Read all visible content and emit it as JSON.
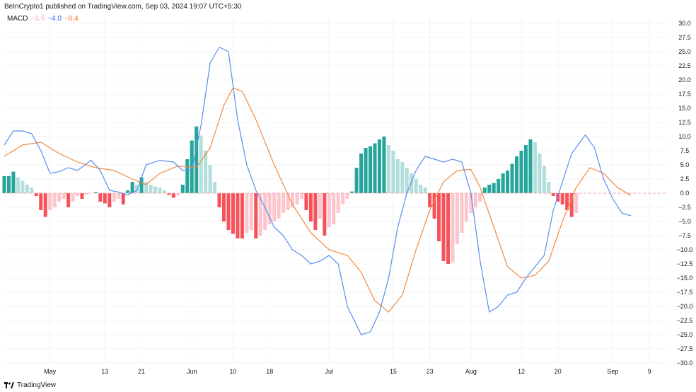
{
  "header": {
    "published": "BeInCrypto1 published on TradingView.com, Sep 03, 2024 19:07 UTC+5:30"
  },
  "legend": {
    "name": "MACD",
    "histogram_value": "−3.5",
    "macd_value": "−4.0",
    "signal_value": "−0.4"
  },
  "footer": {
    "brand": "TradingView"
  },
  "colors": {
    "macd": "#5b8def",
    "signal": "#f5893a",
    "hist_pos_strong": "#26a69a",
    "hist_pos_weak": "#b2dfdb",
    "hist_neg_strong": "#f5525a",
    "hist_neg_weak": "#fcc6cc",
    "zero_line": "#f7a9b1"
  },
  "chart_data": {
    "type": "line",
    "title": "MACD",
    "ylim": [
      -30,
      30
    ],
    "y_ticks": [
      "30.0",
      "27.5",
      "25.0",
      "22.5",
      "20.0",
      "17.5",
      "15.0",
      "12.5",
      "10.0",
      "7.5",
      "5.0",
      "2.5",
      "0.0",
      "−2.5",
      "−5.0",
      "−7.5",
      "−10.0",
      "−12.5",
      "−15.0",
      "−17.5",
      "−20.0",
      "−22.5",
      "−25.0",
      "−27.5",
      "−30.0"
    ],
    "x_ticks": [
      {
        "label": "May",
        "x": "2024-05-01"
      },
      {
        "label": "13",
        "x": "2024-05-13"
      },
      {
        "label": "21",
        "x": "2024-05-21"
      },
      {
        "label": "Jun",
        "x": "2024-06-01"
      },
      {
        "label": "10",
        "x": "2024-06-10"
      },
      {
        "label": "18",
        "x": "2024-06-18"
      },
      {
        "label": "Jul",
        "x": "2024-07-01"
      },
      {
        "label": "15",
        "x": "2024-07-15"
      },
      {
        "label": "23",
        "x": "2024-07-23"
      },
      {
        "label": "Aug",
        "x": "2024-08-01"
      },
      {
        "label": "12",
        "x": "2024-08-12"
      },
      {
        "label": "20",
        "x": "2024-08-20"
      },
      {
        "label": "Sep",
        "x": "2024-09-01"
      },
      {
        "label": "9",
        "x": "2024-09-09"
      }
    ],
    "macd": [
      [
        "2024-04-21",
        8.5
      ],
      [
        "2024-04-23",
        11.0
      ],
      [
        "2024-04-25",
        11.0
      ],
      [
        "2024-04-27",
        10.5
      ],
      [
        "2024-04-29",
        7.5
      ],
      [
        "2024-05-01",
        3.5
      ],
      [
        "2024-05-03",
        3.8
      ],
      [
        "2024-05-05",
        4.5
      ],
      [
        "2024-05-07",
        4.0
      ],
      [
        "2024-05-10",
        5.8
      ],
      [
        "2024-05-12",
        4.0
      ],
      [
        "2024-05-14",
        0.5
      ],
      [
        "2024-05-16",
        0.2
      ],
      [
        "2024-05-18",
        -0.3
      ],
      [
        "2024-05-20",
        0.5
      ],
      [
        "2024-05-22",
        5.0
      ],
      [
        "2024-05-25",
        5.8
      ],
      [
        "2024-05-28",
        5.5
      ],
      [
        "2024-05-30",
        4.0
      ],
      [
        "2024-06-01",
        4.0
      ],
      [
        "2024-06-03",
        12.0
      ],
      [
        "2024-06-05",
        23.0
      ],
      [
        "2024-06-07",
        25.8
      ],
      [
        "2024-06-09",
        25.0
      ],
      [
        "2024-06-11",
        13.0
      ],
      [
        "2024-06-13",
        5.0
      ],
      [
        "2024-06-15",
        0.5
      ],
      [
        "2024-06-17",
        -2.5
      ],
      [
        "2024-06-19",
        -6.0
      ],
      [
        "2024-06-21",
        -7.5
      ],
      [
        "2024-06-23",
        -10.0
      ],
      [
        "2024-06-25",
        -11.0
      ],
      [
        "2024-06-27",
        -12.5
      ],
      [
        "2024-06-29",
        -12.0
      ],
      [
        "2024-07-01",
        -11.0
      ],
      [
        "2024-07-03",
        -12.5
      ],
      [
        "2024-07-05",
        -20.0
      ],
      [
        "2024-07-08",
        -25.0
      ],
      [
        "2024-07-10",
        -24.5
      ],
      [
        "2024-07-12",
        -21.0
      ],
      [
        "2024-07-14",
        -15.0
      ],
      [
        "2024-07-16",
        -6.0
      ],
      [
        "2024-07-18",
        0.0
      ],
      [
        "2024-07-20",
        4.0
      ],
      [
        "2024-07-22",
        6.5
      ],
      [
        "2024-07-24",
        6.0
      ],
      [
        "2024-07-26",
        5.5
      ],
      [
        "2024-07-28",
        6.0
      ],
      [
        "2024-07-30",
        5.5
      ],
      [
        "2024-08-01",
        0.0
      ],
      [
        "2024-08-03",
        -12.0
      ],
      [
        "2024-08-05",
        -21.0
      ],
      [
        "2024-08-07",
        -20.0
      ],
      [
        "2024-08-09",
        -18.0
      ],
      [
        "2024-08-11",
        -17.5
      ],
      [
        "2024-08-13",
        -15.0
      ],
      [
        "2024-08-15",
        -13.0
      ],
      [
        "2024-08-17",
        -11.0
      ],
      [
        "2024-08-19",
        -3.0
      ],
      [
        "2024-08-21",
        2.0
      ],
      [
        "2024-08-23",
        7.0
      ],
      [
        "2024-08-26",
        10.3
      ],
      [
        "2024-08-28",
        8.0
      ],
      [
        "2024-08-30",
        2.5
      ],
      [
        "2024-09-01",
        -1.0
      ],
      [
        "2024-09-03",
        -3.5
      ],
      [
        "2024-09-05",
        -4.0
      ]
    ],
    "signal": [
      [
        "2024-04-21",
        6.5
      ],
      [
        "2024-04-25",
        8.5
      ],
      [
        "2024-04-29",
        9.0
      ],
      [
        "2024-05-03",
        7.0
      ],
      [
        "2024-05-07",
        5.5
      ],
      [
        "2024-05-11",
        4.5
      ],
      [
        "2024-05-15",
        4.0
      ],
      [
        "2024-05-19",
        2.5
      ],
      [
        "2024-05-22",
        1.5
      ],
      [
        "2024-05-25",
        3.5
      ],
      [
        "2024-05-29",
        4.8
      ],
      [
        "2024-06-02",
        4.5
      ],
      [
        "2024-06-05",
        8.0
      ],
      [
        "2024-06-08",
        15.5
      ],
      [
        "2024-06-10",
        18.6
      ],
      [
        "2024-06-12",
        18.0
      ],
      [
        "2024-06-15",
        13.0
      ],
      [
        "2024-06-19",
        5.0
      ],
      [
        "2024-06-23",
        -2.0
      ],
      [
        "2024-06-27",
        -7.0
      ],
      [
        "2024-07-01",
        -10.0
      ],
      [
        "2024-07-05",
        -11.0
      ],
      [
        "2024-07-08",
        -14.0
      ],
      [
        "2024-07-11",
        -19.0
      ],
      [
        "2024-07-14",
        -21.0
      ],
      [
        "2024-07-17",
        -18.0
      ],
      [
        "2024-07-20",
        -10.0
      ],
      [
        "2024-07-23",
        -3.0
      ],
      [
        "2024-07-26",
        2.0
      ],
      [
        "2024-07-29",
        4.0
      ],
      [
        "2024-08-01",
        4.2
      ],
      [
        "2024-08-03",
        1.0
      ],
      [
        "2024-08-06",
        -6.0
      ],
      [
        "2024-08-09",
        -13.0
      ],
      [
        "2024-08-12",
        -15.0
      ],
      [
        "2024-08-15",
        -14.5
      ],
      [
        "2024-08-18",
        -12.0
      ],
      [
        "2024-08-21",
        -5.0
      ],
      [
        "2024-08-24",
        1.0
      ],
      [
        "2024-08-27",
        4.5
      ],
      [
        "2024-08-30",
        3.5
      ],
      [
        "2024-09-02",
        1.0
      ],
      [
        "2024-09-05",
        -0.4
      ]
    ],
    "histogram": [
      [
        "2024-04-21",
        3
      ],
      [
        "2024-04-22",
        3
      ],
      [
        "2024-04-23",
        3.8
      ],
      [
        "2024-04-24",
        2.8
      ],
      [
        "2024-04-25",
        2.2
      ],
      [
        "2024-04-26",
        1.5
      ],
      [
        "2024-04-27",
        1.0
      ],
      [
        "2024-04-28",
        -0.5
      ],
      [
        "2024-04-29",
        -3.0
      ],
      [
        "2024-04-30",
        -4.2
      ],
      [
        "2024-05-01",
        -3.0
      ],
      [
        "2024-05-02",
        -2.5
      ],
      [
        "2024-05-03",
        -1.5
      ],
      [
        "2024-05-04",
        -1.0
      ],
      [
        "2024-05-05",
        -2.5
      ],
      [
        "2024-05-06",
        -1.5
      ],
      [
        "2024-05-07",
        -0.5
      ],
      [
        "2024-05-08",
        -1.0
      ],
      [
        "2024-05-09",
        -0.3
      ],
      [
        "2024-05-11",
        0.2
      ],
      [
        "2024-05-12",
        -1.5
      ],
      [
        "2024-05-13",
        -1.8
      ],
      [
        "2024-05-14",
        -2.5
      ],
      [
        "2024-05-15",
        -1.5
      ],
      [
        "2024-05-16",
        -1.0
      ],
      [
        "2024-05-17",
        -2.0
      ],
      [
        "2024-05-18",
        0.5
      ],
      [
        "2024-05-19",
        2.0
      ],
      [
        "2024-05-20",
        1.5
      ],
      [
        "2024-05-21",
        2.8
      ],
      [
        "2024-05-22",
        2.0
      ],
      [
        "2024-05-23",
        1.5
      ],
      [
        "2024-05-24",
        1.2
      ],
      [
        "2024-05-25",
        1.0
      ],
      [
        "2024-05-26",
        0.5
      ],
      [
        "2024-05-27",
        -0.3
      ],
      [
        "2024-05-28",
        -0.8
      ],
      [
        "2024-05-29",
        -0.4
      ],
      [
        "2024-05-30",
        1.5
      ],
      [
        "2024-05-31",
        6.0
      ],
      [
        "2024-06-01",
        9.3
      ],
      [
        "2024-06-02",
        11.8
      ],
      [
        "2024-06-03",
        10.2
      ],
      [
        "2024-06-04",
        7.5
      ],
      [
        "2024-06-05",
        5.0
      ],
      [
        "2024-06-06",
        2.0
      ],
      [
        "2024-06-07",
        -2.5
      ],
      [
        "2024-06-08",
        -5.0
      ],
      [
        "2024-06-09",
        -6.5
      ],
      [
        "2024-06-10",
        -7.2
      ],
      [
        "2024-06-11",
        -8.0
      ],
      [
        "2024-06-12",
        -8.0
      ],
      [
        "2024-06-13",
        -7.0
      ],
      [
        "2024-06-14",
        -6.5
      ],
      [
        "2024-06-15",
        -8.0
      ],
      [
        "2024-06-16",
        -7.5
      ],
      [
        "2024-06-17",
        -6.5
      ],
      [
        "2024-06-18",
        -5.5
      ],
      [
        "2024-06-19",
        -5.0
      ],
      [
        "2024-06-20",
        -4.5
      ],
      [
        "2024-06-21",
        -3.5
      ],
      [
        "2024-06-22",
        -3.0
      ],
      [
        "2024-06-23",
        -2.5
      ],
      [
        "2024-06-24",
        -2.0
      ],
      [
        "2024-06-25",
        -1.0
      ],
      [
        "2024-06-26",
        -3.0
      ],
      [
        "2024-06-27",
        -5.0
      ],
      [
        "2024-06-28",
        -6.5
      ],
      [
        "2024-06-29",
        -4.5
      ],
      [
        "2024-06-30",
        -7.5
      ],
      [
        "2024-07-01",
        -6.0
      ],
      [
        "2024-07-02",
        -5.5
      ],
      [
        "2024-07-03",
        -3.5
      ],
      [
        "2024-07-04",
        -2.0
      ],
      [
        "2024-07-05",
        -1.0
      ],
      [
        "2024-07-06",
        0.3
      ],
      [
        "2024-07-07",
        4.5
      ],
      [
        "2024-07-08",
        7.0
      ],
      [
        "2024-07-09",
        8.0
      ],
      [
        "2024-07-10",
        8.3
      ],
      [
        "2024-07-11",
        8.8
      ],
      [
        "2024-07-12",
        9.5
      ],
      [
        "2024-07-13",
        10.0
      ],
      [
        "2024-07-14",
        8.5
      ],
      [
        "2024-07-15",
        7.5
      ],
      [
        "2024-07-16",
        6.0
      ],
      [
        "2024-07-17",
        5.5
      ],
      [
        "2024-07-18",
        4.5
      ],
      [
        "2024-07-19",
        3.5
      ],
      [
        "2024-07-20",
        2.5
      ],
      [
        "2024-07-21",
        1.5
      ],
      [
        "2024-07-22",
        1.0
      ],
      [
        "2024-07-23",
        -2.5
      ],
      [
        "2024-07-24",
        -4.5
      ],
      [
        "2024-07-25",
        -8.5
      ],
      [
        "2024-07-26",
        -12.0
      ],
      [
        "2024-07-27",
        -12.5
      ],
      [
        "2024-07-28",
        -12.2
      ],
      [
        "2024-07-29",
        -9.0
      ],
      [
        "2024-07-30",
        -7.0
      ],
      [
        "2024-07-31",
        -5.0
      ],
      [
        "2024-08-01",
        -3.5
      ],
      [
        "2024-08-02",
        -2.5
      ],
      [
        "2024-08-03",
        -1.5
      ],
      [
        "2024-08-04",
        1.0
      ],
      [
        "2024-08-05",
        1.5
      ],
      [
        "2024-08-06",
        1.8
      ],
      [
        "2024-08-07",
        2.5
      ],
      [
        "2024-08-08",
        3.5
      ],
      [
        "2024-08-09",
        4.0
      ],
      [
        "2024-08-10",
        5.2
      ],
      [
        "2024-08-11",
        6.5
      ],
      [
        "2024-08-12",
        7.5
      ],
      [
        "2024-08-13",
        8.5
      ],
      [
        "2024-08-14",
        9.5
      ],
      [
        "2024-08-15",
        9.0
      ],
      [
        "2024-08-16",
        7.0
      ],
      [
        "2024-08-17",
        4.8
      ],
      [
        "2024-08-18",
        2.0
      ],
      [
        "2024-08-19",
        -0.5
      ],
      [
        "2024-08-20",
        -1.5
      ],
      [
        "2024-08-21",
        -2.0
      ],
      [
        "2024-08-22",
        -3.0
      ],
      [
        "2024-08-23",
        -4.2
      ],
      [
        "2024-08-24",
        -3.5
      ]
    ]
  }
}
